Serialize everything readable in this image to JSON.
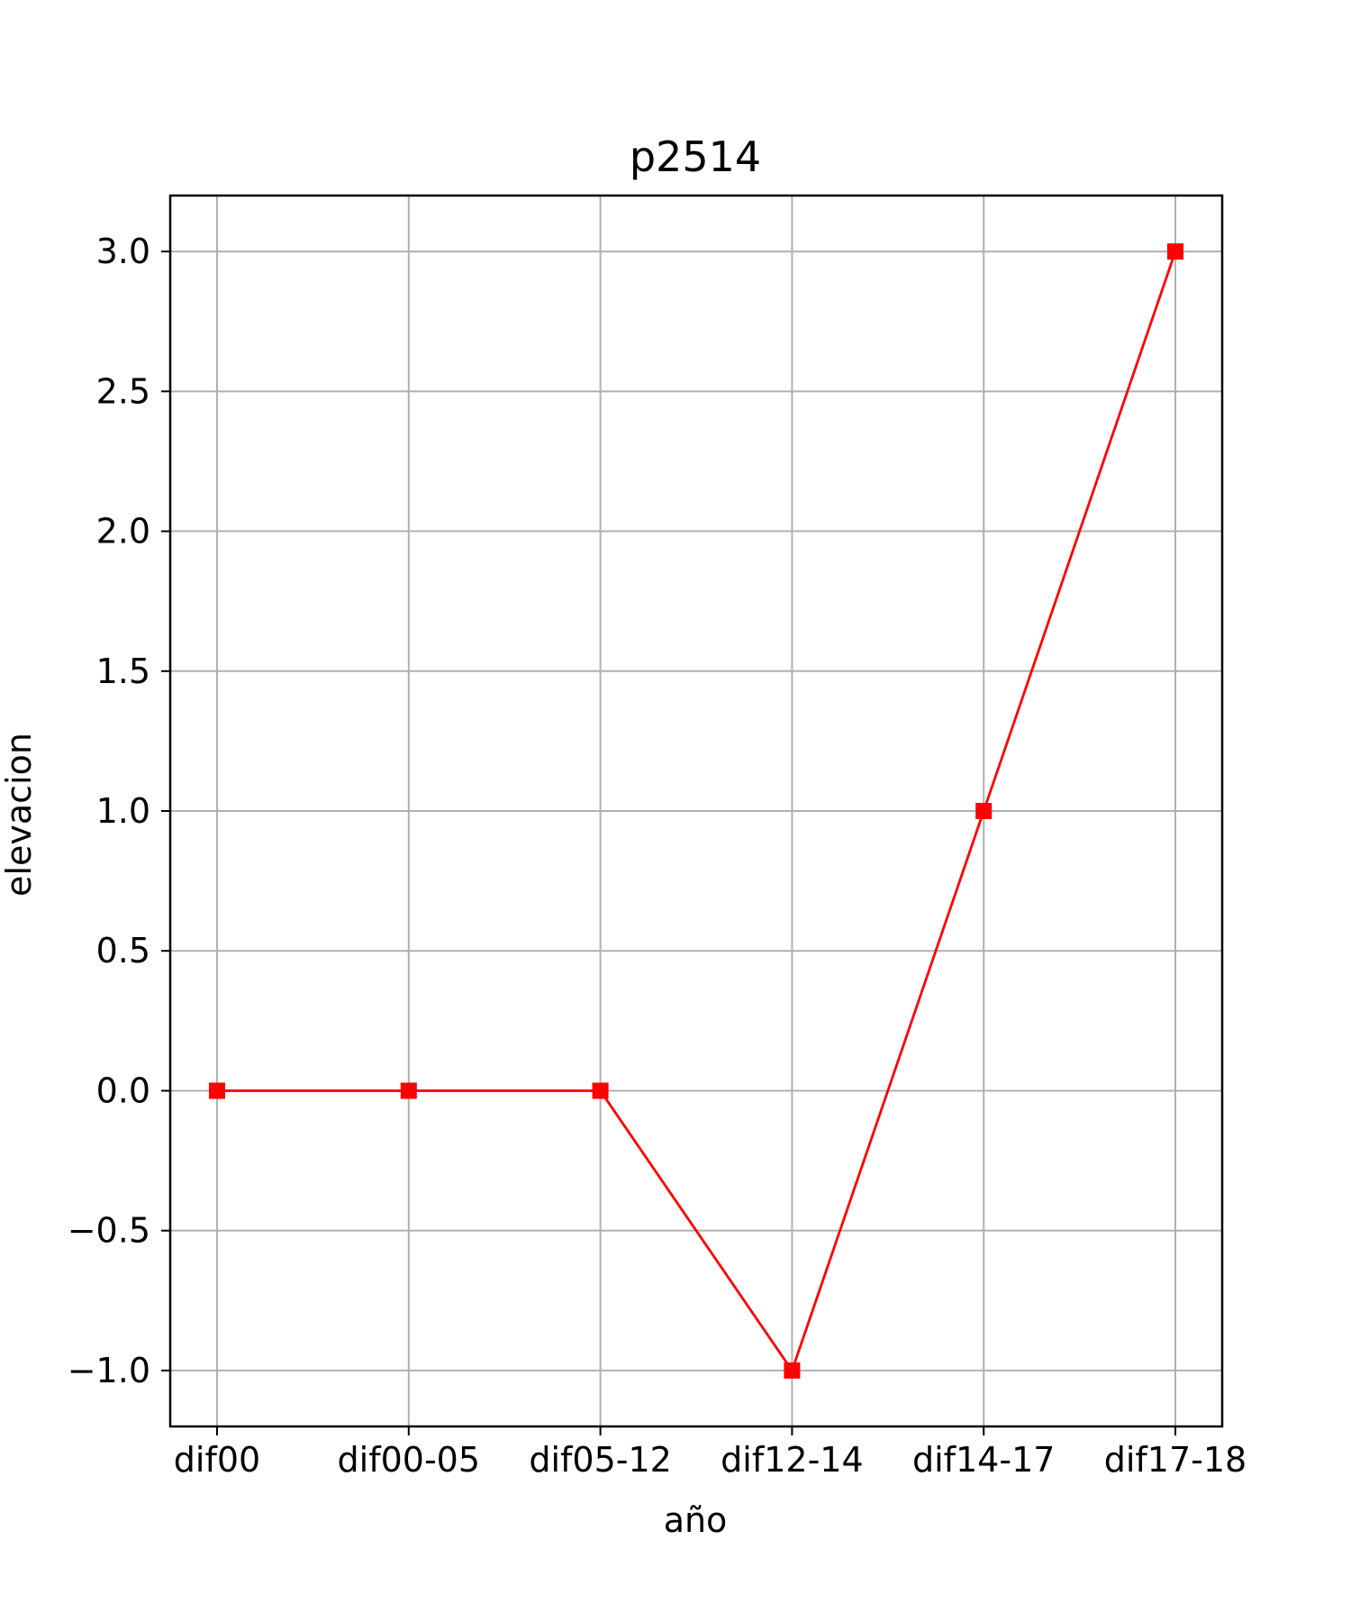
{
  "chart_data": {
    "type": "line",
    "title": "p2514",
    "xlabel": "año",
    "ylabel": "elevacion",
    "categories": [
      "dif00",
      "dif00-05",
      "dif05-12",
      "dif12-14",
      "dif14-17",
      "dif17-18"
    ],
    "series": [
      {
        "values": [
          0,
          0,
          0,
          -1,
          1,
          3
        ],
        "color": "#ff0000",
        "marker": "square"
      }
    ],
    "ylim": [
      -1.2,
      3.2
    ],
    "yticks": [
      -1.0,
      -0.5,
      0.0,
      0.5,
      1.0,
      1.5,
      2.0,
      2.5,
      3.0
    ],
    "ytick_labels": [
      "−1.0",
      "−0.5",
      "0.0",
      "0.5",
      "1.0",
      "1.5",
      "2.0",
      "2.5",
      "3.0"
    ],
    "grid": true,
    "grid_color": "#b0b0b0",
    "legend": false
  }
}
